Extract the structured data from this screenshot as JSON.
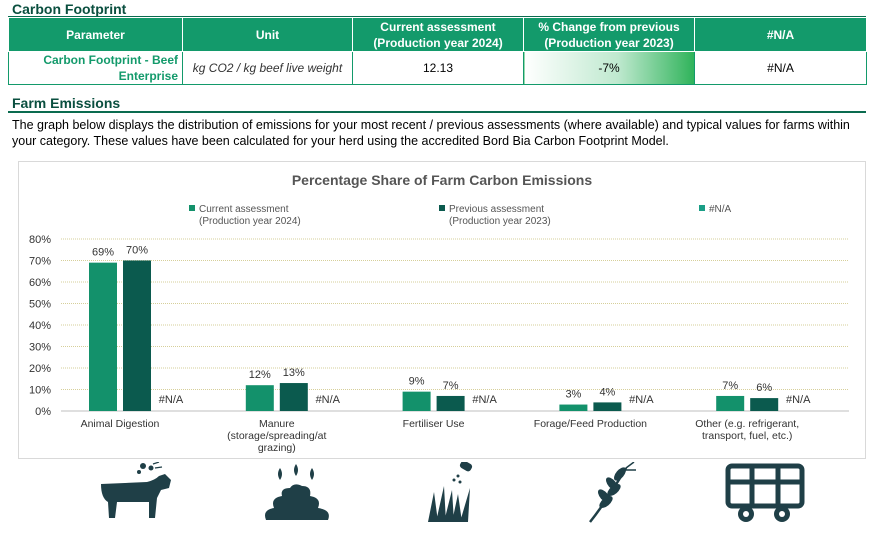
{
  "carbon_footprint": {
    "title": "Carbon Footprint",
    "headers": [
      "Parameter",
      "Unit",
      "Current assessment\n(Production year 2024)",
      "% Change from previous\n(Production year 2023)",
      "#N/A"
    ],
    "row": {
      "parameter": "Carbon Footprint - Beef Enterprise",
      "unit": "kg CO2 / kg beef live weight",
      "current": "12.13",
      "change": "-7%",
      "na": "#N/A"
    }
  },
  "farm_emissions": {
    "title": "Farm Emissions",
    "description": "The graph below displays the distribution of emissions for your most recent / previous assessments (where available) and typical values for farms within your category. These values have been calculated for your herd using the accredited Bord Bia Carbon Footprint Model."
  },
  "colors": {
    "header_green": "#139a6b",
    "current": "#13916b",
    "previous": "#0b5a4e",
    "third": "#1a9e86",
    "title_dark": "#0a4f3f"
  },
  "chart_data": {
    "type": "bar",
    "title": "Percentage Share of Farm Carbon Emissions",
    "categories": [
      "Animal Digestion",
      "Manure (storage/spreading/at grazing)",
      "Fertiliser Use",
      "Forage/Feed Production",
      "Other (e.g. refrigerant, transport, fuel, etc.)"
    ],
    "series": [
      {
        "name": "Current assessment (Production year 2024)",
        "values": [
          69,
          12,
          9,
          3,
          7
        ],
        "labels": [
          "69%",
          "12%",
          "9%",
          "3%",
          "7%"
        ]
      },
      {
        "name": "Previous assessment (Production year 2023)",
        "values": [
          70,
          13,
          7,
          4,
          6
        ],
        "labels": [
          "70%",
          "13%",
          "7%",
          "4%",
          "6%"
        ]
      },
      {
        "name": "#N/A",
        "values": [
          null,
          null,
          null,
          null,
          null
        ],
        "labels": [
          "#N/A",
          "#N/A",
          "#N/A",
          "#N/A",
          "#N/A"
        ]
      }
    ],
    "yticks": [
      "0%",
      "10%",
      "20%",
      "30%",
      "40%",
      "50%",
      "60%",
      "70%",
      "80%"
    ],
    "ylim": [
      0,
      80
    ],
    "grid": true,
    "legend_position": "top"
  },
  "icons": [
    "cow-icon",
    "manure-icon",
    "fertiliser-grass-icon",
    "wheat-icon",
    "livestock-trailer-icon"
  ]
}
